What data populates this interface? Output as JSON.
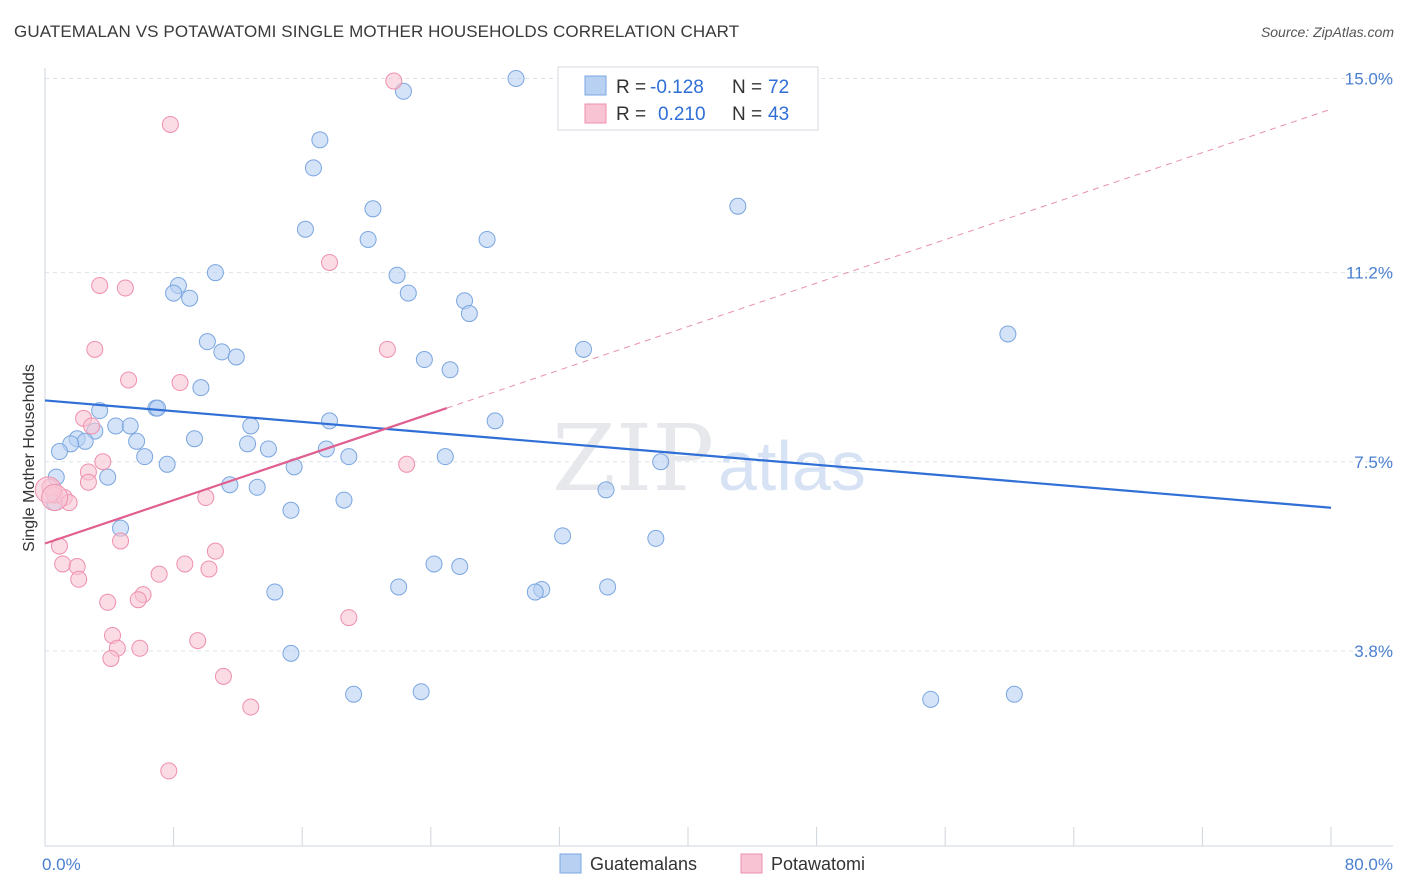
{
  "title": "GUATEMALAN VS POTAWATOMI SINGLE MOTHER HOUSEHOLDS CORRELATION CHART",
  "source": "Source: ZipAtlas.com",
  "watermark": {
    "zip": "ZIP",
    "atlas": "atlas"
  },
  "colors": {
    "blue_fill": "#b8d1f3",
    "blue_stroke": "#7aa6e0",
    "blue_line": "#2f6fd6",
    "pink_fill": "#f8c4d4",
    "pink_stroke": "#ee8fae",
    "pink_line": "#e05f8f",
    "grid": "#dde3ea",
    "tick_text": "#4a7fd0"
  },
  "legend": {
    "r_label": "R =",
    "n_label": "N =",
    "items": [
      {
        "r": "-0.128",
        "n": "72",
        "color": "blue"
      },
      {
        "r": "0.210",
        "n": "43",
        "color": "pink"
      }
    ]
  },
  "bottom_legend": [
    "Guatemalans",
    "Potawatomi"
  ],
  "chart_data": {
    "type": "scatter",
    "title": "GUATEMALAN VS POTAWATOMI SINGLE MOTHER HOUSEHOLDS CORRELATION CHART",
    "ylabel": "Single Mother Households",
    "xlabel": "",
    "x_tick_labels": [
      "0.0%",
      "80.0%"
    ],
    "y_tick_labels": [
      "3.8%",
      "7.5%",
      "11.2%",
      "15.0%"
    ],
    "y_ticks": [
      3.8,
      7.5,
      11.2,
      15.0
    ],
    "xlim": [
      0,
      80
    ],
    "ylim": [
      0,
      15.6
    ],
    "grid": true,
    "legend_position": "top-center",
    "series": [
      {
        "name": "Guatemalans",
        "color": "blue",
        "r": -0.128,
        "n": 72,
        "trend": {
          "x": [
            0,
            80
          ],
          "y": [
            8.7,
            6.6
          ]
        },
        "points": [
          [
            29.3,
            15.0
          ],
          [
            22.3,
            14.75
          ],
          [
            17.1,
            13.8
          ],
          [
            16.7,
            13.25
          ],
          [
            20.4,
            12.45
          ],
          [
            43.1,
            12.5
          ],
          [
            16.2,
            12.05
          ],
          [
            20.1,
            11.85
          ],
          [
            27.5,
            11.85
          ],
          [
            10.6,
            11.2
          ],
          [
            21.9,
            11.15
          ],
          [
            8.3,
            10.95
          ],
          [
            8.0,
            10.8
          ],
          [
            9.0,
            10.7
          ],
          [
            22.6,
            10.8
          ],
          [
            26.1,
            10.65
          ],
          [
            26.4,
            10.4
          ],
          [
            59.9,
            10.0
          ],
          [
            10.1,
            9.85
          ],
          [
            11.0,
            9.65
          ],
          [
            33.5,
            9.7
          ],
          [
            11.9,
            9.55
          ],
          [
            23.6,
            9.5
          ],
          [
            25.2,
            9.3
          ],
          [
            9.7,
            8.95
          ],
          [
            6.9,
            8.55
          ],
          [
            7.0,
            8.55
          ],
          [
            3.4,
            8.5
          ],
          [
            17.7,
            8.3
          ],
          [
            28.0,
            8.3
          ],
          [
            3.1,
            8.1
          ],
          [
            4.4,
            8.2
          ],
          [
            5.3,
            8.2
          ],
          [
            12.8,
            8.2
          ],
          [
            2.0,
            7.95
          ],
          [
            2.5,
            7.9
          ],
          [
            9.3,
            7.95
          ],
          [
            5.7,
            7.9
          ],
          [
            1.6,
            7.85
          ],
          [
            12.6,
            7.85
          ],
          [
            13.9,
            7.75
          ],
          [
            17.5,
            7.75
          ],
          [
            6.2,
            7.6
          ],
          [
            18.9,
            7.6
          ],
          [
            24.9,
            7.6
          ],
          [
            38.3,
            7.5
          ],
          [
            7.6,
            7.45
          ],
          [
            15.5,
            7.4
          ],
          [
            0.9,
            7.7
          ],
          [
            0.7,
            7.2
          ],
          [
            3.9,
            7.2
          ],
          [
            11.5,
            7.05
          ],
          [
            13.2,
            7.0
          ],
          [
            34.9,
            6.95
          ],
          [
            18.6,
            6.75
          ],
          [
            0.6,
            6.7
          ],
          [
            15.3,
            6.55
          ],
          [
            4.7,
            6.2
          ],
          [
            32.2,
            6.05
          ],
          [
            38.0,
            6.0
          ],
          [
            24.2,
            5.5
          ],
          [
            25.8,
            5.45
          ],
          [
            22.0,
            5.05
          ],
          [
            35.0,
            5.05
          ],
          [
            30.9,
            5.0
          ],
          [
            30.5,
            4.95
          ],
          [
            14.3,
            4.95
          ],
          [
            15.3,
            3.75
          ],
          [
            19.2,
            2.95
          ],
          [
            23.4,
            3.0
          ],
          [
            55.1,
            2.85
          ],
          [
            60.3,
            2.95
          ]
        ]
      },
      {
        "name": "Potawatomi",
        "color": "pink",
        "r": 0.21,
        "n": 43,
        "trend": {
          "x": [
            0,
            25
          ],
          "y": [
            5.9,
            8.55
          ]
        },
        "trend_dashed": {
          "x": [
            25,
            80
          ],
          "y": [
            8.55,
            14.4
          ]
        },
        "points": [
          [
            21.7,
            14.95
          ],
          [
            7.8,
            14.1
          ],
          [
            17.7,
            11.4
          ],
          [
            3.4,
            10.95
          ],
          [
            5.0,
            10.9
          ],
          [
            21.3,
            9.7
          ],
          [
            3.1,
            9.7
          ],
          [
            5.2,
            9.1
          ],
          [
            8.4,
            9.05
          ],
          [
            2.4,
            8.35
          ],
          [
            2.9,
            8.2
          ],
          [
            22.5,
            7.45
          ],
          [
            2.7,
            7.3
          ],
          [
            3.6,
            7.5
          ],
          [
            0.3,
            7.0
          ],
          [
            2.7,
            7.1
          ],
          [
            0.6,
            6.85
          ],
          [
            1.2,
            6.8
          ],
          [
            1.5,
            6.7
          ],
          [
            10.0,
            6.8
          ],
          [
            0.9,
            5.85
          ],
          [
            4.7,
            5.95
          ],
          [
            10.6,
            5.75
          ],
          [
            1.1,
            5.5
          ],
          [
            8.7,
            5.5
          ],
          [
            2.0,
            5.45
          ],
          [
            10.2,
            5.4
          ],
          [
            7.1,
            5.3
          ],
          [
            2.1,
            5.2
          ],
          [
            6.1,
            4.9
          ],
          [
            5.8,
            4.8
          ],
          [
            3.9,
            4.75
          ],
          [
            18.9,
            4.45
          ],
          [
            4.2,
            4.1
          ],
          [
            9.5,
            4.0
          ],
          [
            4.5,
            3.85
          ],
          [
            5.9,
            3.85
          ],
          [
            4.1,
            3.65
          ],
          [
            11.1,
            3.3
          ],
          [
            12.8,
            2.7
          ],
          [
            7.7,
            1.45
          ]
        ],
        "large_points": [
          [
            0.2,
            6.95
          ],
          [
            0.6,
            6.8
          ]
        ]
      }
    ]
  }
}
